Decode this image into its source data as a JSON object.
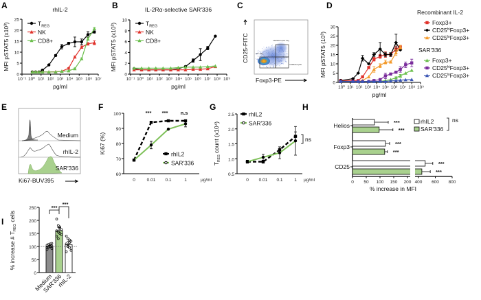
{
  "panel_letters": [
    "A",
    "B",
    "C",
    "D",
    "E",
    "F",
    "G",
    "H",
    "I"
  ],
  "colors": {
    "treg": "#000000",
    "nk": "#e0322b",
    "cd8": "#6cbf4e",
    "orange": "#f39a2b",
    "purple": "#7a2d9c",
    "blue": "#3a55b4",
    "sar_fill": "#a9d18e",
    "medium_fill": "#8c8c8c"
  },
  "chart_data": [
    {
      "id": "A",
      "type": "line",
      "title": "rhIL-2",
      "xlabel": "pg/ml",
      "ylabel": "MFI pSTAT5 (x10³)",
      "xscale": "log",
      "xlim": [
        0.1,
        10000000.0
      ],
      "ylim": [
        0,
        25
      ],
      "yticks": [
        0,
        5,
        10,
        15,
        20,
        25
      ],
      "xticks": [
        0.1,
        1,
        10,
        100,
        1000,
        10000.0,
        100000.0,
        1000000.0,
        10000000.0
      ],
      "xtick_labels": [
        "10⁻¹",
        "10⁰",
        "10¹",
        "10²",
        "10³",
        "10⁴",
        "10⁵",
        "10⁶",
        "10⁷"
      ],
      "series": [
        {
          "name": "T",
          "name_sub": "REG",
          "color": "#000000",
          "marker": "circle",
          "x": [
            1.2,
            2.7,
            6,
            14,
            66,
            340,
            1500,
            7800,
            35000,
            180000,
            830000,
            3900000
          ],
          "y": [
            1,
            1,
            1,
            1.8,
            4.2,
            8.5,
            12.5,
            14,
            14.7,
            14.7,
            18,
            19.2
          ],
          "err": [
            0,
            0,
            0,
            0.3,
            0.3,
            0.4,
            1,
            0.5,
            2.2,
            1.3,
            1.3,
            0.5
          ]
        },
        {
          "name": "NK",
          "color": "#e0322b",
          "marker": "triangle",
          "x": [
            1.2,
            2.7,
            6,
            14,
            66,
            340,
            1500,
            7800,
            35000,
            180000,
            830000,
            3900000
          ],
          "y": [
            1,
            1,
            1,
            1,
            1,
            1.1,
            1.3,
            2.7,
            7.8,
            12.3,
            13.8,
            14.3
          ],
          "err": [
            0,
            0,
            0,
            0,
            0,
            0,
            0,
            0.3,
            0.4,
            0.5,
            0.6,
            0.9
          ]
        },
        {
          "name": "CD8+",
          "color": "#6cbf4e",
          "marker": "triangle",
          "x": [
            1.2,
            2.7,
            6,
            14,
            66,
            340,
            1500,
            7800,
            35000,
            180000,
            830000,
            3900000
          ],
          "y": [
            1,
            1,
            1,
            1,
            1,
            1,
            1.3,
            1.5,
            2.5,
            7,
            16,
            20.7
          ],
          "err": [
            0,
            0,
            0,
            0,
            0,
            0,
            0,
            0,
            0.3,
            0.4,
            0.6,
            0.5
          ]
        }
      ]
    },
    {
      "id": "B",
      "type": "line",
      "title": "IL-2Rα-selective SAR'336",
      "xlabel": "pg/ml",
      "ylabel": "MFI pSTAT5 (x10³)",
      "xscale": "log",
      "xlim": [
        0.1,
        1000000000.0
      ],
      "ylim": [
        0,
        10
      ],
      "yticks": [
        0,
        2,
        4,
        6,
        8,
        10
      ],
      "xticks": [
        0.1,
        1,
        10,
        100,
        1000,
        10000.0,
        100000.0,
        1000000.0,
        10000000.0,
        100000000.0,
        1000000000.0
      ],
      "xtick_labels": [
        "10⁻¹",
        "10⁰",
        "10¹",
        "10²",
        "10³",
        "10⁴",
        "10⁵",
        "10⁶",
        "10⁷",
        "10⁸",
        "10⁹"
      ],
      "series": [
        {
          "name": "T",
          "name_sub": "REG",
          "color": "#000000",
          "marker": "circle",
          "x": [
            0.23,
            1.4,
            8,
            42,
            240,
            1500,
            9000,
            51000,
            320000,
            1800000,
            10500000,
            65000000
          ],
          "y": [
            1,
            0.8,
            0.8,
            0.8,
            0.8,
            0.8,
            1,
            1.4,
            2.5,
            3.6,
            4.8,
            7
          ],
          "err": [
            0,
            0,
            0,
            0,
            0,
            0,
            0.1,
            0.1,
            0.3,
            1.1,
            0.3,
            0
          ]
        },
        {
          "name": "NK",
          "color": "#e0322b",
          "marker": "triangle",
          "x": [
            0.23,
            1.4,
            8,
            42,
            240,
            1500,
            9000,
            51000,
            320000,
            1800000,
            10500000,
            65000000
          ],
          "y": [
            0.8,
            0.8,
            0.8,
            0.8,
            0.8,
            0.8,
            0.8,
            0.8,
            0.9,
            0.9,
            1,
            1.4
          ],
          "err": [
            0,
            0,
            0,
            0,
            0,
            0,
            0,
            0,
            0,
            0,
            0,
            0
          ]
        },
        {
          "name": "CD8+",
          "color": "#6cbf4e",
          "marker": "triangle",
          "x": [
            0.23,
            1.4,
            8,
            42,
            240,
            1500,
            9000,
            51000,
            320000,
            1800000,
            10500000,
            65000000
          ],
          "y": [
            1.1,
            1.1,
            1.1,
            1.1,
            1.1,
            1.1,
            1.2,
            1.3,
            1.3,
            1.3,
            1.4,
            1.5
          ],
          "err": [
            0,
            0,
            0,
            0,
            0,
            0,
            0,
            0,
            0,
            0,
            0,
            0
          ]
        }
      ]
    },
    {
      "id": "C",
      "type": "scatter",
      "xlabel": "Foxp3-PE",
      "ylabel": "CD25-FITC",
      "gates": [
        "CD25hiFoxp3hi Treg",
        "Non Treg",
        "CD25loFoxp3hi"
      ]
    },
    {
      "id": "D",
      "type": "line",
      "ylabel": "MFI pSTAT5 (10³)",
      "xlabel": "pg/ml",
      "xscale": "log",
      "xlim": [
        1,
        1000000000.0
      ],
      "ylim": [
        0,
        30
      ],
      "yticks": [
        0,
        5,
        10,
        15,
        20,
        25,
        30
      ],
      "xticks": [
        1,
        10,
        100,
        1000,
        10000.0,
        100000.0,
        1000000.0,
        10000000.0,
        100000000.0,
        1000000000.0
      ],
      "xtick_labels": [
        "10⁰",
        "10¹",
        "10²",
        "10³",
        "10⁴",
        "10⁵",
        "10⁶",
        "10⁷",
        "10⁸",
        "10⁹"
      ],
      "legend_groups": [
        "Recombinant IL-2",
        "SAR'336"
      ],
      "series": [
        {
          "group": 0,
          "name": "Foxp3+",
          "color": "#e0322b",
          "marker": "square",
          "x": [
            0.8,
            20,
            80,
            250,
            1260,
            5000,
            25000,
            100000,
            400000,
            1600000,
            5000000
          ],
          "y": [
            1,
            1,
            1,
            3,
            8,
            12.5,
            14,
            15,
            15,
            18,
            19
          ],
          "err": [
            0,
            0,
            0,
            0,
            0,
            1,
            1,
            1.5,
            1,
            1.5,
            1
          ]
        },
        {
          "group": 0,
          "name": "CD25",
          "name_sup": "hi",
          "name_tail": "Foxp3+",
          "color": "#000000",
          "marker": "diamond",
          "x": [
            0.8,
            20,
            80,
            250,
            1260,
            5000,
            25000,
            100000,
            400000,
            1600000,
            5000000
          ],
          "y": [
            1,
            2,
            5,
            13,
            10,
            15,
            18,
            15,
            15,
            21.5,
            17.5
          ],
          "err": [
            0,
            0,
            0,
            1.5,
            0,
            1,
            3.5,
            1,
            1,
            4.5,
            0
          ]
        },
        {
          "group": 0,
          "name": "CD25",
          "name_sup": "lo",
          "name_tail": "Foxp3+",
          "color": "#f39a2b",
          "marker": "triangle",
          "x": [
            0.8,
            20,
            80,
            250,
            1260,
            5000,
            25000,
            100000,
            400000,
            1600000,
            5000000
          ],
          "y": [
            0.5,
            0.5,
            0.5,
            1,
            3,
            7,
            9,
            11,
            11,
            16,
            19
          ],
          "err": [
            0,
            0,
            0,
            0,
            0,
            1.5,
            1,
            1,
            0.5,
            1.5,
            1
          ]
        },
        {
          "group": 1,
          "name": "Foxp3+",
          "color": "#6cbf4e",
          "marker": "triangle",
          "x": [
            0.8,
            20,
            80,
            250,
            1260,
            5000,
            25000,
            100000,
            400000,
            1600000,
            5000000,
            20000000,
            100000000
          ],
          "y": [
            0.5,
            0.5,
            0.5,
            0.5,
            0.5,
            0.5,
            0.5,
            1,
            1.5,
            2.5,
            3.5,
            5,
            6.5
          ],
          "err": [
            0,
            0,
            0,
            0,
            0,
            0,
            0,
            0,
            0,
            0.5,
            0.8,
            0,
            0
          ]
        },
        {
          "group": 1,
          "name": "CD25",
          "name_sup": "hi",
          "name_tail": "Foxp3+",
          "color": "#7a2d9c",
          "marker": "square",
          "x": [
            0.8,
            20,
            80,
            250,
            1260,
            5000,
            25000,
            100000,
            400000,
            1600000,
            5000000,
            20000000,
            100000000
          ],
          "y": [
            0.5,
            0.5,
            0.5,
            0.5,
            0.5,
            1,
            1.5,
            3.5,
            4.5,
            5.5,
            7,
            9.5,
            10.5
          ],
          "err": [
            0,
            0,
            0,
            0,
            0,
            0,
            0,
            1.5,
            0,
            0.5,
            1.5,
            1.5,
            2
          ]
        },
        {
          "group": 1,
          "name": "CD25",
          "name_sup": "lo",
          "name_tail": "Foxp3+",
          "color": "#3a55b4",
          "marker": "triangle",
          "x": [
            0.8,
            20,
            80,
            250,
            1260,
            5000,
            25000,
            100000,
            400000,
            1600000,
            5000000,
            20000000,
            100000000
          ],
          "y": [
            0.5,
            0.5,
            0.5,
            0.5,
            0.5,
            0.5,
            0.5,
            0.5,
            0.8,
            1,
            1.2,
            1.4,
            1.5
          ],
          "err": [
            0,
            0,
            0,
            0,
            0,
            0,
            0,
            0,
            0,
            0,
            0,
            0,
            0
          ]
        }
      ]
    },
    {
      "id": "E",
      "type": "histogram",
      "xlabel": "Ki67-BUV395",
      "rows": [
        "Medium",
        "rhIL-2",
        "SAR'336"
      ]
    },
    {
      "id": "F",
      "type": "line",
      "ylabel": "Ki67 (%)",
      "unit": "μg/ml",
      "categories": [
        "0",
        "0.01",
        "0.1",
        "1"
      ],
      "ylim": [
        60,
        100
      ],
      "yticks": [
        60,
        70,
        80,
        90,
        100
      ],
      "annotations": [
        "***",
        "***",
        "n.s"
      ],
      "series": [
        {
          "name": "rhIL2",
          "color": "#000000",
          "dashed": true,
          "y": [
            69,
            94,
            95,
            95
          ],
          "err": [
            0,
            0,
            0,
            0
          ]
        },
        {
          "name": "SAR'336",
          "color": "#7fc15a",
          "dashed": false,
          "y": [
            69,
            79,
            89.5,
            93
          ],
          "err": [
            0,
            2.5,
            0,
            2
          ]
        }
      ]
    },
    {
      "id": "G",
      "type": "line",
      "ylabel": "count (x10⁴)",
      "ylabel_prefix": "T",
      "ylabel_sub": "REG",
      "unit": "μg/ml",
      "categories": [
        "0",
        "0.01",
        "0.1",
        "1"
      ],
      "ylim": [
        0.5,
        2.5
      ],
      "yticks": [
        "0.5",
        "1.0",
        "1.5",
        "2.0",
        "2.5"
      ],
      "annotation": "ns",
      "series": [
        {
          "name": "rhIL2",
          "color": "#000000",
          "dashed": true,
          "y": [
            0.9,
            0.9,
            1.3,
            1.75
          ],
          "err": [
            0,
            0.05,
            0.1,
            0.15
          ]
        },
        {
          "name": "SAR'336",
          "color": "#7fc15a",
          "dashed": false,
          "y": [
            0.9,
            1.05,
            1.2,
            1.6
          ],
          "err": [
            0.05,
            0.1,
            0.2,
            0.48
          ]
        }
      ]
    },
    {
      "id": "H",
      "type": "bar",
      "orientation": "horizontal",
      "xlabel": "% increase in MFI",
      "categories": [
        "Helios",
        "Foxp3",
        "CD25"
      ],
      "xtick_labels": [
        "0",
        "50",
        "100",
        "150",
        "200",
        "400",
        "600",
        "800"
      ],
      "axis_break": [
        200,
        400
      ],
      "annotation": "ns",
      "series": [
        {
          "name": "rhIL2",
          "color": "#ffffff",
          "values": [
            80,
            120,
            480
          ],
          "err": [
            50,
            15,
            90
          ],
          "stars": [
            "***",
            "***",
            "***"
          ]
        },
        {
          "name": "SAR'336",
          "color": "#a9d18e",
          "values": [
            97,
            117,
            440
          ],
          "err": [
            50,
            10,
            100
          ],
          "stars": [
            "***",
            "***",
            "***"
          ]
        }
      ]
    },
    {
      "id": "I",
      "type": "bar",
      "ylabel": "% increase # T",
      "ylabel_sub": "REG",
      "ylabel_tail": " cells",
      "categories": [
        "Medium",
        "SAR'336",
        "rhIL-2"
      ],
      "ylim": [
        0,
        250
      ],
      "yticks": [
        0,
        50,
        100,
        150,
        200,
        250
      ],
      "reference_line": 100,
      "values": [
        100,
        160,
        107
      ],
      "err": [
        5,
        12,
        12
      ],
      "colors": [
        "#8c8c8c",
        "#a9d18e",
        "#ffffff"
      ],
      "points": [
        [
          95,
          98,
          100,
          102,
          105,
          108,
          110,
          92,
          88,
          97,
          103,
          112
        ],
        [
          205,
          180,
          175,
          165,
          160,
          155,
          150,
          145,
          140,
          130,
          170
        ],
        [
          140,
          130,
          125,
          120,
          110,
          100,
          95,
          85,
          80,
          105,
          115
        ]
      ],
      "annotations": [
        "***",
        "***"
      ]
    }
  ]
}
